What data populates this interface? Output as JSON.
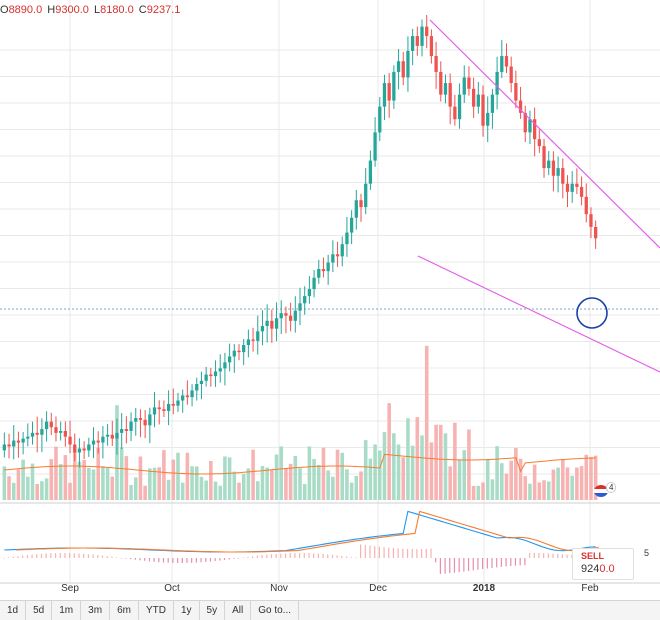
{
  "ohlc": {
    "open_label": "O",
    "open": "8890.0",
    "high_label": "H",
    "high": "9300.0",
    "low_label": "L",
    "low": "8180.0",
    "close_label": "C",
    "close": "9237.1"
  },
  "time_axis": {
    "labels": [
      "Sep",
      "Oct",
      "Nov",
      "Dec",
      "2018",
      "Feb"
    ],
    "year_label": "2018"
  },
  "toolbar": {
    "ranges": [
      "1d",
      "5d",
      "1m",
      "3m",
      "6m",
      "YTD",
      "1y",
      "5y",
      "All"
    ],
    "goto": "Go to..."
  },
  "sell_box": {
    "label": "SELL",
    "price_prefix": "924",
    "price_suffix": "0.0"
  },
  "badge": {
    "count": "4"
  },
  "cut_value": "5",
  "colors": {
    "up": "#26a69a",
    "down": "#ef5350",
    "up_vol": "#a8dcc6",
    "down_vol": "#f7b2b2",
    "trendline": "#e35ee8",
    "ma": "#f57c30",
    "macd": "#2196f3",
    "signal": "#f57c30",
    "circle": "#1a3fa8",
    "grid": "#e9e9e9"
  },
  "chart_data": {
    "type": "candlestick",
    "price_series": [
      7300,
      7250,
      7400,
      7350,
      7450,
      7500,
      7600,
      7550,
      7700,
      7900,
      7750,
      7600,
      7650,
      7500,
      7300,
      7100,
      7200,
      7150,
      7300,
      7400,
      7350,
      7500,
      7550,
      7450,
      7600,
      7700,
      7650,
      7900,
      8000,
      7950,
      7800,
      8100,
      8300,
      8250,
      8200,
      8400,
      8350,
      8500,
      8650,
      8600,
      8800,
      9000,
      9100,
      9300,
      9250,
      9400,
      9500,
      9700,
      9900,
      10100,
      10050,
      10300,
      10500,
      10450,
      10800,
      11000,
      11200,
      10900,
      11300,
      11500,
      11400,
      11200,
      11600,
      11900,
      12200,
      12500,
      13000,
      13400,
      13300,
      13700,
      14100,
      14000,
      14600,
      15200,
      16000,
      17000,
      16600,
      18000,
      19500,
      21500,
      23500,
      25500,
      24000,
      26500,
      27500,
      26000,
      28500,
      30000,
      29000,
      31000,
      30000,
      28000,
      26500,
      24500,
      25500,
      23500,
      22500,
      24500,
      26000,
      25000,
      23500,
      24500,
      22000,
      23000,
      24500,
      26500,
      28000,
      27000,
      25500,
      24000,
      23000,
      21500,
      22500,
      21000,
      20500,
      19000,
      19500,
      18500,
      19000,
      18000,
      17500,
      18000,
      17800,
      17200,
      16200,
      15500,
      14900
    ],
    "trendlines": [
      {
        "name": "upper",
        "from": "Dec peak",
        "to": "Feb"
      },
      {
        "name": "lower",
        "from": "Dec",
        "to": "Feb"
      }
    ],
    "indicators": [
      "volume",
      "moving-average",
      "macd"
    ]
  }
}
